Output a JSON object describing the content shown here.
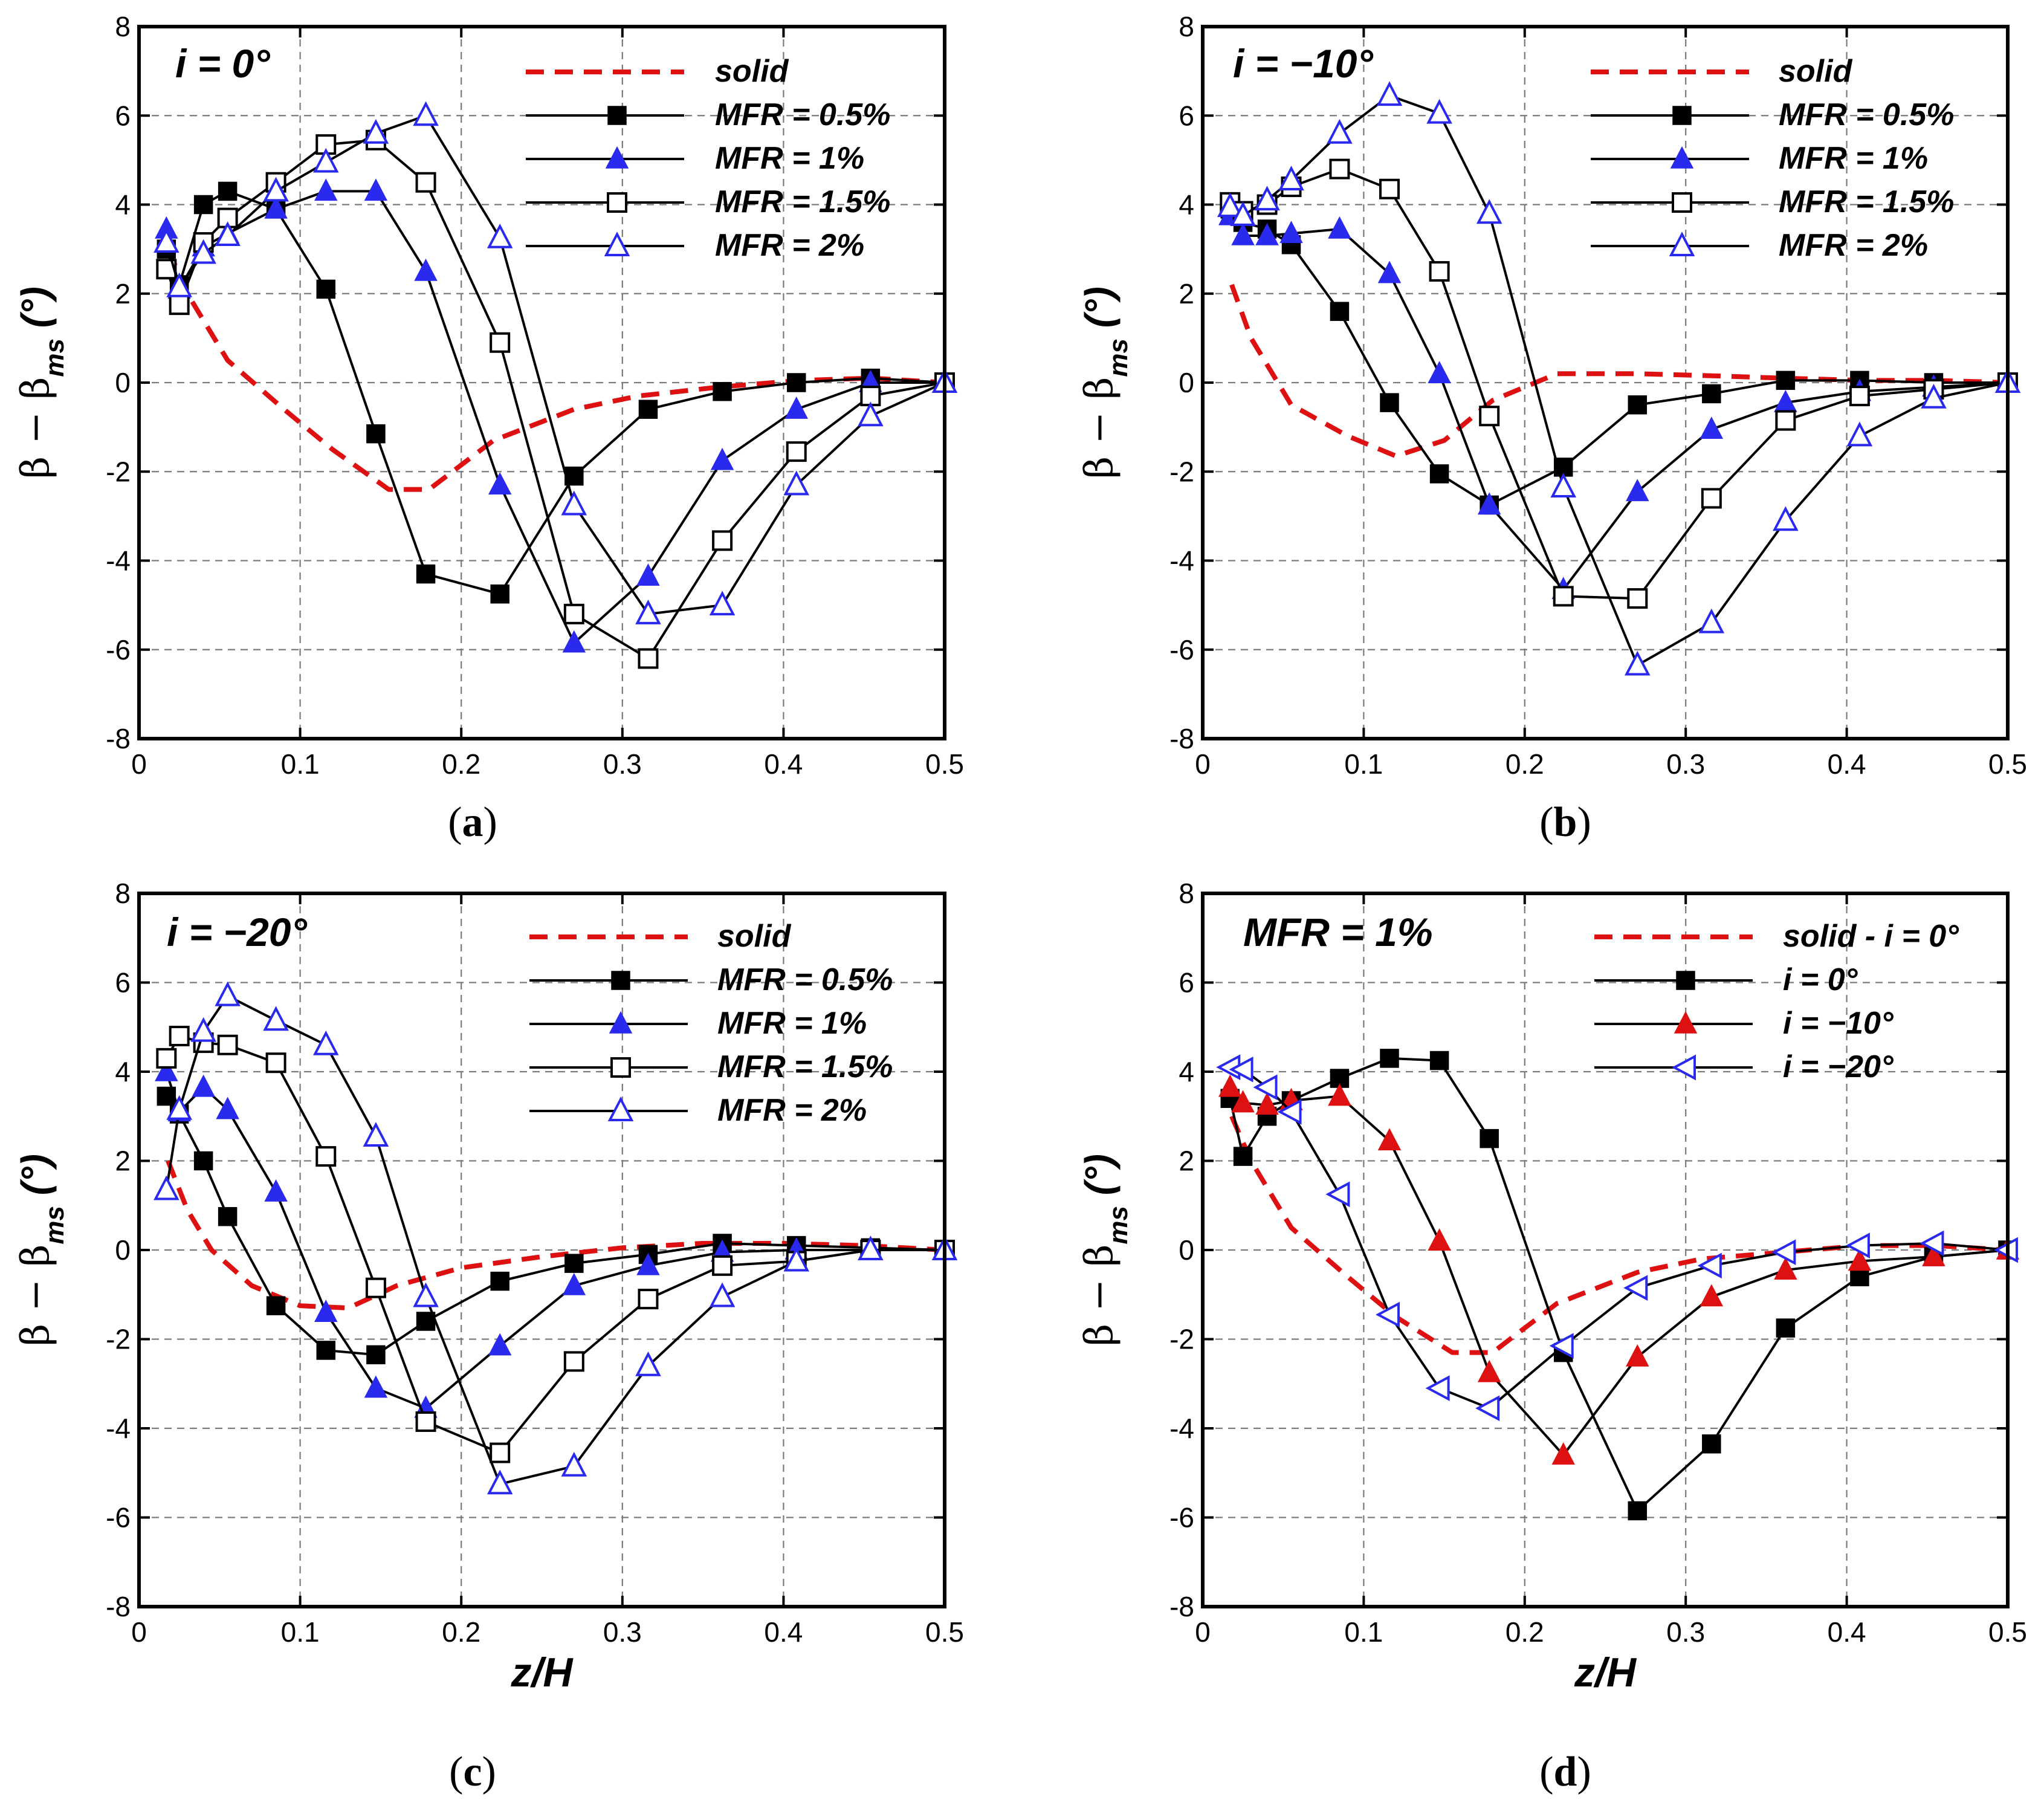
{
  "chart_data": [
    {
      "type": "line",
      "panel": "a",
      "caption_letter": "a",
      "annotation": "i = 0°",
      "xlabel": "",
      "ylabel": "β − β_ms (°)",
      "xlim": [
        0,
        0.5
      ],
      "ylim": [
        -8,
        8
      ],
      "xticks": [
        "0",
        "0.1",
        "0.2",
        "0.3",
        "0.4",
        "0.5"
      ],
      "yticks": [
        "-8",
        "-6",
        "-4",
        "-2",
        "0",
        "2",
        "4",
        "6",
        "8"
      ],
      "grid": true,
      "legend_position": "top-right",
      "series": [
        {
          "name": "solid",
          "style": "dashed",
          "color": "#dd1111",
          "marker": "none",
          "x": [
            0.018,
            0.03,
            0.055,
            0.09,
            0.12,
            0.155,
            0.18,
            0.22,
            0.27,
            0.31,
            0.36,
            0.41,
            0.455,
            0.5
          ],
          "y": [
            3.0,
            2.0,
            0.5,
            -0.6,
            -1.5,
            -2.4,
            -2.4,
            -1.3,
            -0.6,
            -0.3,
            -0.1,
            0.05,
            0.1,
            0.0
          ]
        },
        {
          "name": "MFR = 0.5%",
          "style": "solid",
          "color": "#000000",
          "marker": "filled-square",
          "x": [
            0.017,
            0.025,
            0.04,
            0.055,
            0.085,
            0.116,
            0.147,
            0.178,
            0.224,
            0.27,
            0.316,
            0.362,
            0.408,
            0.454,
            0.5
          ],
          "y": [
            3.0,
            2.2,
            4.0,
            4.3,
            3.9,
            2.1,
            -1.15,
            -4.3,
            -4.75,
            -2.1,
            -0.6,
            -0.2,
            0.0,
            0.1,
            0.0
          ]
        },
        {
          "name": "MFR = 1%",
          "style": "solid",
          "color": "#2a2aee",
          "marker": "filled-triangle",
          "x": [
            0.017,
            0.025,
            0.04,
            0.055,
            0.085,
            0.116,
            0.147,
            0.178,
            0.224,
            0.27,
            0.316,
            0.362,
            0.408,
            0.454,
            0.5
          ],
          "y": [
            3.45,
            2.1,
            3.05,
            3.35,
            3.9,
            4.3,
            4.3,
            2.5,
            -2.3,
            -5.85,
            -4.35,
            -1.75,
            -0.6,
            0.0,
            0.0
          ]
        },
        {
          "name": "MFR = 1.5%",
          "style": "solid",
          "color": "#000000",
          "marker": "open-square",
          "x": [
            0.017,
            0.025,
            0.04,
            0.055,
            0.085,
            0.116,
            0.147,
            0.178,
            0.224,
            0.27,
            0.316,
            0.362,
            0.408,
            0.454,
            0.5
          ],
          "y": [
            2.55,
            1.75,
            3.15,
            3.7,
            4.5,
            5.35,
            5.45,
            4.5,
            0.9,
            -5.2,
            -6.2,
            -3.55,
            -1.55,
            -0.3,
            0.0
          ]
        },
        {
          "name": "MFR = 2%",
          "style": "solid",
          "color": "#2a2aee",
          "marker": "open-triangle",
          "x": [
            0.017,
            0.025,
            0.04,
            0.055,
            0.085,
            0.116,
            0.147,
            0.178,
            0.224,
            0.27,
            0.316,
            0.362,
            0.408,
            0.454,
            0.5
          ],
          "y": [
            3.15,
            2.15,
            2.9,
            3.3,
            4.3,
            4.95,
            5.6,
            6.0,
            3.25,
            -2.75,
            -5.2,
            -5.0,
            -2.3,
            -0.75,
            0.0
          ]
        }
      ]
    },
    {
      "type": "line",
      "panel": "b",
      "caption_letter": "b",
      "annotation": "i = −10°",
      "xlabel": "",
      "ylabel": "β − β_ms (°)",
      "xlim": [
        0,
        0.5
      ],
      "ylim": [
        -8,
        8
      ],
      "xticks": [
        "0",
        "0.1",
        "0.2",
        "0.3",
        "0.4",
        "0.5"
      ],
      "yticks": [
        "-8",
        "-6",
        "-4",
        "-2",
        "0",
        "2",
        "4",
        "6",
        "8"
      ],
      "grid": true,
      "legend_position": "top-right",
      "series": [
        {
          "name": "solid",
          "style": "dashed",
          "color": "#dd1111",
          "marker": "none",
          "x": [
            0.018,
            0.03,
            0.055,
            0.09,
            0.12,
            0.15,
            0.18,
            0.22,
            0.27,
            0.32,
            0.36,
            0.41,
            0.455,
            0.5
          ],
          "y": [
            2.2,
            1.0,
            -0.5,
            -1.2,
            -1.65,
            -1.3,
            -0.4,
            0.2,
            0.2,
            0.15,
            0.1,
            0.05,
            0.05,
            0.0
          ]
        },
        {
          "name": "MFR = 0.5%",
          "style": "solid",
          "color": "#000000",
          "marker": "filled-square",
          "x": [
            0.017,
            0.025,
            0.04,
            0.055,
            0.085,
            0.116,
            0.147,
            0.178,
            0.224,
            0.27,
            0.316,
            0.362,
            0.408,
            0.454,
            0.5
          ],
          "y": [
            3.9,
            3.6,
            3.45,
            3.1,
            1.6,
            -0.45,
            -2.05,
            -2.75,
            -1.9,
            -0.5,
            -0.25,
            0.05,
            0.05,
            0.0,
            0.0
          ]
        },
        {
          "name": "MFR = 1%",
          "style": "solid",
          "color": "#2a2aee",
          "marker": "filled-triangle",
          "x": [
            0.017,
            0.025,
            0.04,
            0.055,
            0.085,
            0.116,
            0.147,
            0.178,
            0.224,
            0.27,
            0.316,
            0.362,
            0.408,
            0.454,
            0.5
          ],
          "y": [
            3.75,
            3.3,
            3.3,
            3.35,
            3.45,
            2.45,
            0.2,
            -2.75,
            -4.65,
            -2.45,
            -1.05,
            -0.45,
            -0.2,
            -0.1,
            0.0
          ]
        },
        {
          "name": "MFR = 1.5%",
          "style": "solid",
          "color": "#000000",
          "marker": "open-square",
          "x": [
            0.017,
            0.025,
            0.04,
            0.055,
            0.085,
            0.116,
            0.147,
            0.178,
            0.224,
            0.27,
            0.316,
            0.362,
            0.408,
            0.454,
            0.5
          ],
          "y": [
            4.05,
            3.85,
            4.0,
            4.4,
            4.8,
            4.35,
            2.5,
            -0.75,
            -4.8,
            -4.85,
            -2.6,
            -0.85,
            -0.3,
            -0.15,
            0.0
          ]
        },
        {
          "name": "MFR = 2%",
          "style": "solid",
          "color": "#2a2aee",
          "marker": "open-triangle",
          "x": [
            0.017,
            0.025,
            0.04,
            0.055,
            0.085,
            0.116,
            0.147,
            0.178,
            0.224,
            0.27,
            0.316,
            0.362,
            0.408,
            0.454,
            0.5
          ],
          "y": [
            3.95,
            3.75,
            4.1,
            4.55,
            5.6,
            6.45,
            6.05,
            3.8,
            -2.35,
            -6.35,
            -5.4,
            -3.1,
            -1.2,
            -0.35,
            0.0
          ]
        }
      ]
    },
    {
      "type": "line",
      "panel": "c",
      "caption_letter": "c",
      "annotation": "i = −20°",
      "xlabel": "z/H",
      "ylabel": "β − β_ms (°)",
      "xlim": [
        0,
        0.5
      ],
      "ylim": [
        -8,
        8
      ],
      "xticks": [
        "0",
        "0.1",
        "0.2",
        "0.3",
        "0.4",
        "0.5"
      ],
      "yticks": [
        "-8",
        "-6",
        "-4",
        "-2",
        "0",
        "2",
        "4",
        "6",
        "8"
      ],
      "grid": true,
      "legend_position": "top-right",
      "series": [
        {
          "name": "solid",
          "style": "dashed",
          "color": "#dd1111",
          "marker": "none",
          "x": [
            0.018,
            0.03,
            0.045,
            0.07,
            0.1,
            0.13,
            0.16,
            0.2,
            0.25,
            0.3,
            0.35,
            0.4,
            0.45,
            0.5
          ],
          "y": [
            2.0,
            0.9,
            0.0,
            -0.8,
            -1.25,
            -1.3,
            -0.8,
            -0.4,
            -0.15,
            0.05,
            0.15,
            0.15,
            0.1,
            0.0
          ]
        },
        {
          "name": "MFR = 0.5%",
          "style": "solid",
          "color": "#000000",
          "marker": "filled-square",
          "x": [
            0.017,
            0.025,
            0.04,
            0.055,
            0.085,
            0.116,
            0.147,
            0.178,
            0.224,
            0.27,
            0.316,
            0.362,
            0.408,
            0.454,
            0.5
          ],
          "y": [
            3.45,
            3.05,
            2.0,
            0.75,
            -1.25,
            -2.25,
            -2.35,
            -1.6,
            -0.7,
            -0.3,
            -0.1,
            0.15,
            0.1,
            0.05,
            0.0
          ]
        },
        {
          "name": "MFR = 1%",
          "style": "solid",
          "color": "#2a2aee",
          "marker": "filled-triangle",
          "x": [
            0.017,
            0.025,
            0.04,
            0.055,
            0.085,
            0.116,
            0.147,
            0.178,
            0.224,
            0.27,
            0.316,
            0.362,
            0.408,
            0.454,
            0.5
          ],
          "y": [
            4.0,
            3.1,
            3.65,
            3.15,
            1.3,
            -1.4,
            -3.1,
            -3.55,
            -2.15,
            -0.8,
            -0.35,
            -0.05,
            0.0,
            0.0,
            0.0
          ]
        },
        {
          "name": "MFR = 1.5%",
          "style": "solid",
          "color": "#000000",
          "marker": "open-square",
          "x": [
            0.017,
            0.025,
            0.04,
            0.055,
            0.085,
            0.116,
            0.147,
            0.178,
            0.224,
            0.27,
            0.316,
            0.362,
            0.408,
            0.454,
            0.5
          ],
          "y": [
            4.3,
            4.8,
            4.65,
            4.6,
            4.2,
            2.1,
            -0.85,
            -3.85,
            -4.55,
            -2.5,
            -1.1,
            -0.35,
            -0.25,
            0.0,
            0.0
          ]
        },
        {
          "name": "MFR = 2%",
          "style": "solid",
          "color": "#2a2aee",
          "marker": "open-triangle",
          "x": [
            0.017,
            0.025,
            0.04,
            0.055,
            0.085,
            0.116,
            0.147,
            0.178,
            0.224,
            0.27,
            0.316,
            0.362,
            0.408,
            0.454,
            0.5
          ],
          "y": [
            1.35,
            3.15,
            4.9,
            5.7,
            5.15,
            4.6,
            2.55,
            -1.05,
            -5.25,
            -4.85,
            -2.6,
            -1.05,
            -0.25,
            0.0,
            0.0
          ]
        }
      ]
    },
    {
      "type": "line",
      "panel": "d",
      "caption_letter": "d",
      "annotation": "MFR = 1%",
      "xlabel": "z/H",
      "ylabel": "β − β_ms (°)",
      "xlim": [
        0,
        0.5
      ],
      "ylim": [
        -8,
        8
      ],
      "xticks": [
        "0",
        "0.1",
        "0.2",
        "0.3",
        "0.4",
        "0.5"
      ],
      "yticks": [
        "-8",
        "-6",
        "-4",
        "-2",
        "0",
        "2",
        "4",
        "6",
        "8"
      ],
      "grid": true,
      "legend_position": "top-right",
      "series": [
        {
          "name": "solid - i = 0°",
          "style": "dashed",
          "color": "#dd1111",
          "marker": "none",
          "x": [
            0.018,
            0.03,
            0.055,
            0.09,
            0.12,
            0.155,
            0.18,
            0.22,
            0.27,
            0.31,
            0.36,
            0.41,
            0.455,
            0.5
          ],
          "y": [
            3.0,
            2.0,
            0.5,
            -0.6,
            -1.5,
            -2.3,
            -2.3,
            -1.2,
            -0.5,
            -0.2,
            -0.05,
            0.1,
            0.1,
            0.0
          ]
        },
        {
          "name": "i = 0°",
          "style": "solid",
          "color": "#000000",
          "marker": "filled-square",
          "x": [
            0.017,
            0.025,
            0.04,
            0.055,
            0.085,
            0.116,
            0.147,
            0.178,
            0.224,
            0.27,
            0.316,
            0.362,
            0.408,
            0.454,
            0.5
          ],
          "y": [
            3.4,
            2.1,
            3.0,
            3.35,
            3.85,
            4.3,
            4.25,
            2.5,
            -2.3,
            -5.85,
            -4.35,
            -1.75,
            -0.6,
            -0.15,
            0.0
          ]
        },
        {
          "name": "i = −10°",
          "style": "solid",
          "color": "#dd1111",
          "marker": "filled-triangle",
          "x": [
            0.017,
            0.025,
            0.04,
            0.055,
            0.085,
            0.116,
            0.147,
            0.178,
            0.224,
            0.27,
            0.316,
            0.362,
            0.408,
            0.454,
            0.5
          ],
          "y": [
            3.65,
            3.3,
            3.25,
            3.35,
            3.45,
            2.45,
            0.2,
            -2.75,
            -4.6,
            -2.4,
            -1.05,
            -0.45,
            -0.25,
            -0.15,
            0.0
          ]
        },
        {
          "name": "i = −20°",
          "style": "solid",
          "color": "#2a2aee",
          "marker": "open-left-triangle",
          "x": [
            0.017,
            0.025,
            0.04,
            0.055,
            0.085,
            0.116,
            0.147,
            0.178,
            0.224,
            0.27,
            0.316,
            0.362,
            0.408,
            0.454,
            0.5
          ],
          "y": [
            4.1,
            4.05,
            3.65,
            3.1,
            1.25,
            -1.45,
            -3.1,
            -3.55,
            -2.15,
            -0.85,
            -0.35,
            -0.05,
            0.1,
            0.15,
            0.0
          ]
        }
      ]
    }
  ]
}
